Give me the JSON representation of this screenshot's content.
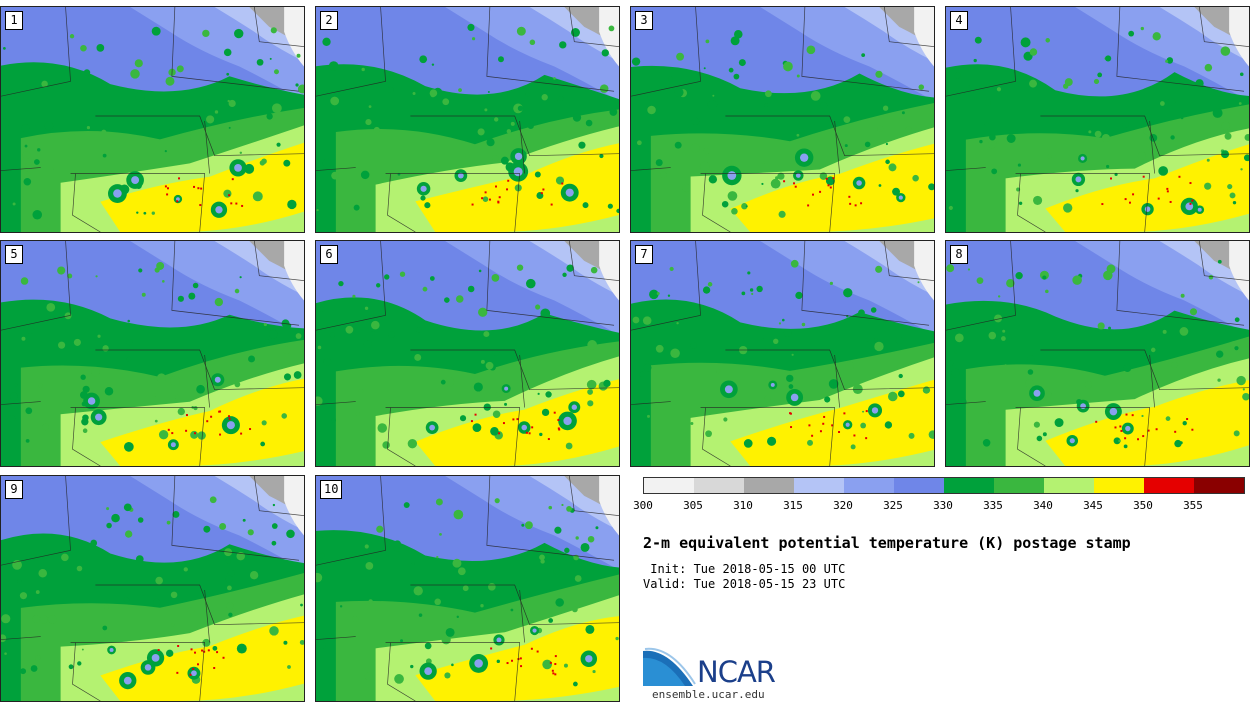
{
  "panels": [
    {
      "label": "1"
    },
    {
      "label": "2"
    },
    {
      "label": "3"
    },
    {
      "label": "4"
    },
    {
      "label": "5"
    },
    {
      "label": "6"
    },
    {
      "label": "7"
    },
    {
      "label": "8"
    },
    {
      "label": "9"
    },
    {
      "label": "10"
    }
  ],
  "colorbar": {
    "colors": [
      "#f2f2f2",
      "#d8d8d8",
      "#a8a8a8",
      "#b4c4f6",
      "#8aa0f0",
      "#6f86e8",
      "#00a13b",
      "#3ab73f",
      "#b4f271",
      "#fff200",
      "#e50000",
      "#8a0000"
    ],
    "tick_labels": [
      "300",
      "305",
      "310",
      "315",
      "320",
      "325",
      "330",
      "335",
      "340",
      "345",
      "350",
      "355"
    ]
  },
  "title": "2-m equivalent potential temperature (K) postage stamp",
  "init": " Init: Tue 2018-05-15 00 UTC",
  "valid": "Valid: Tue 2018-05-15 23 UTC",
  "logo": {
    "text": "NCAR",
    "url": "ensemble.ucar.edu"
  }
}
